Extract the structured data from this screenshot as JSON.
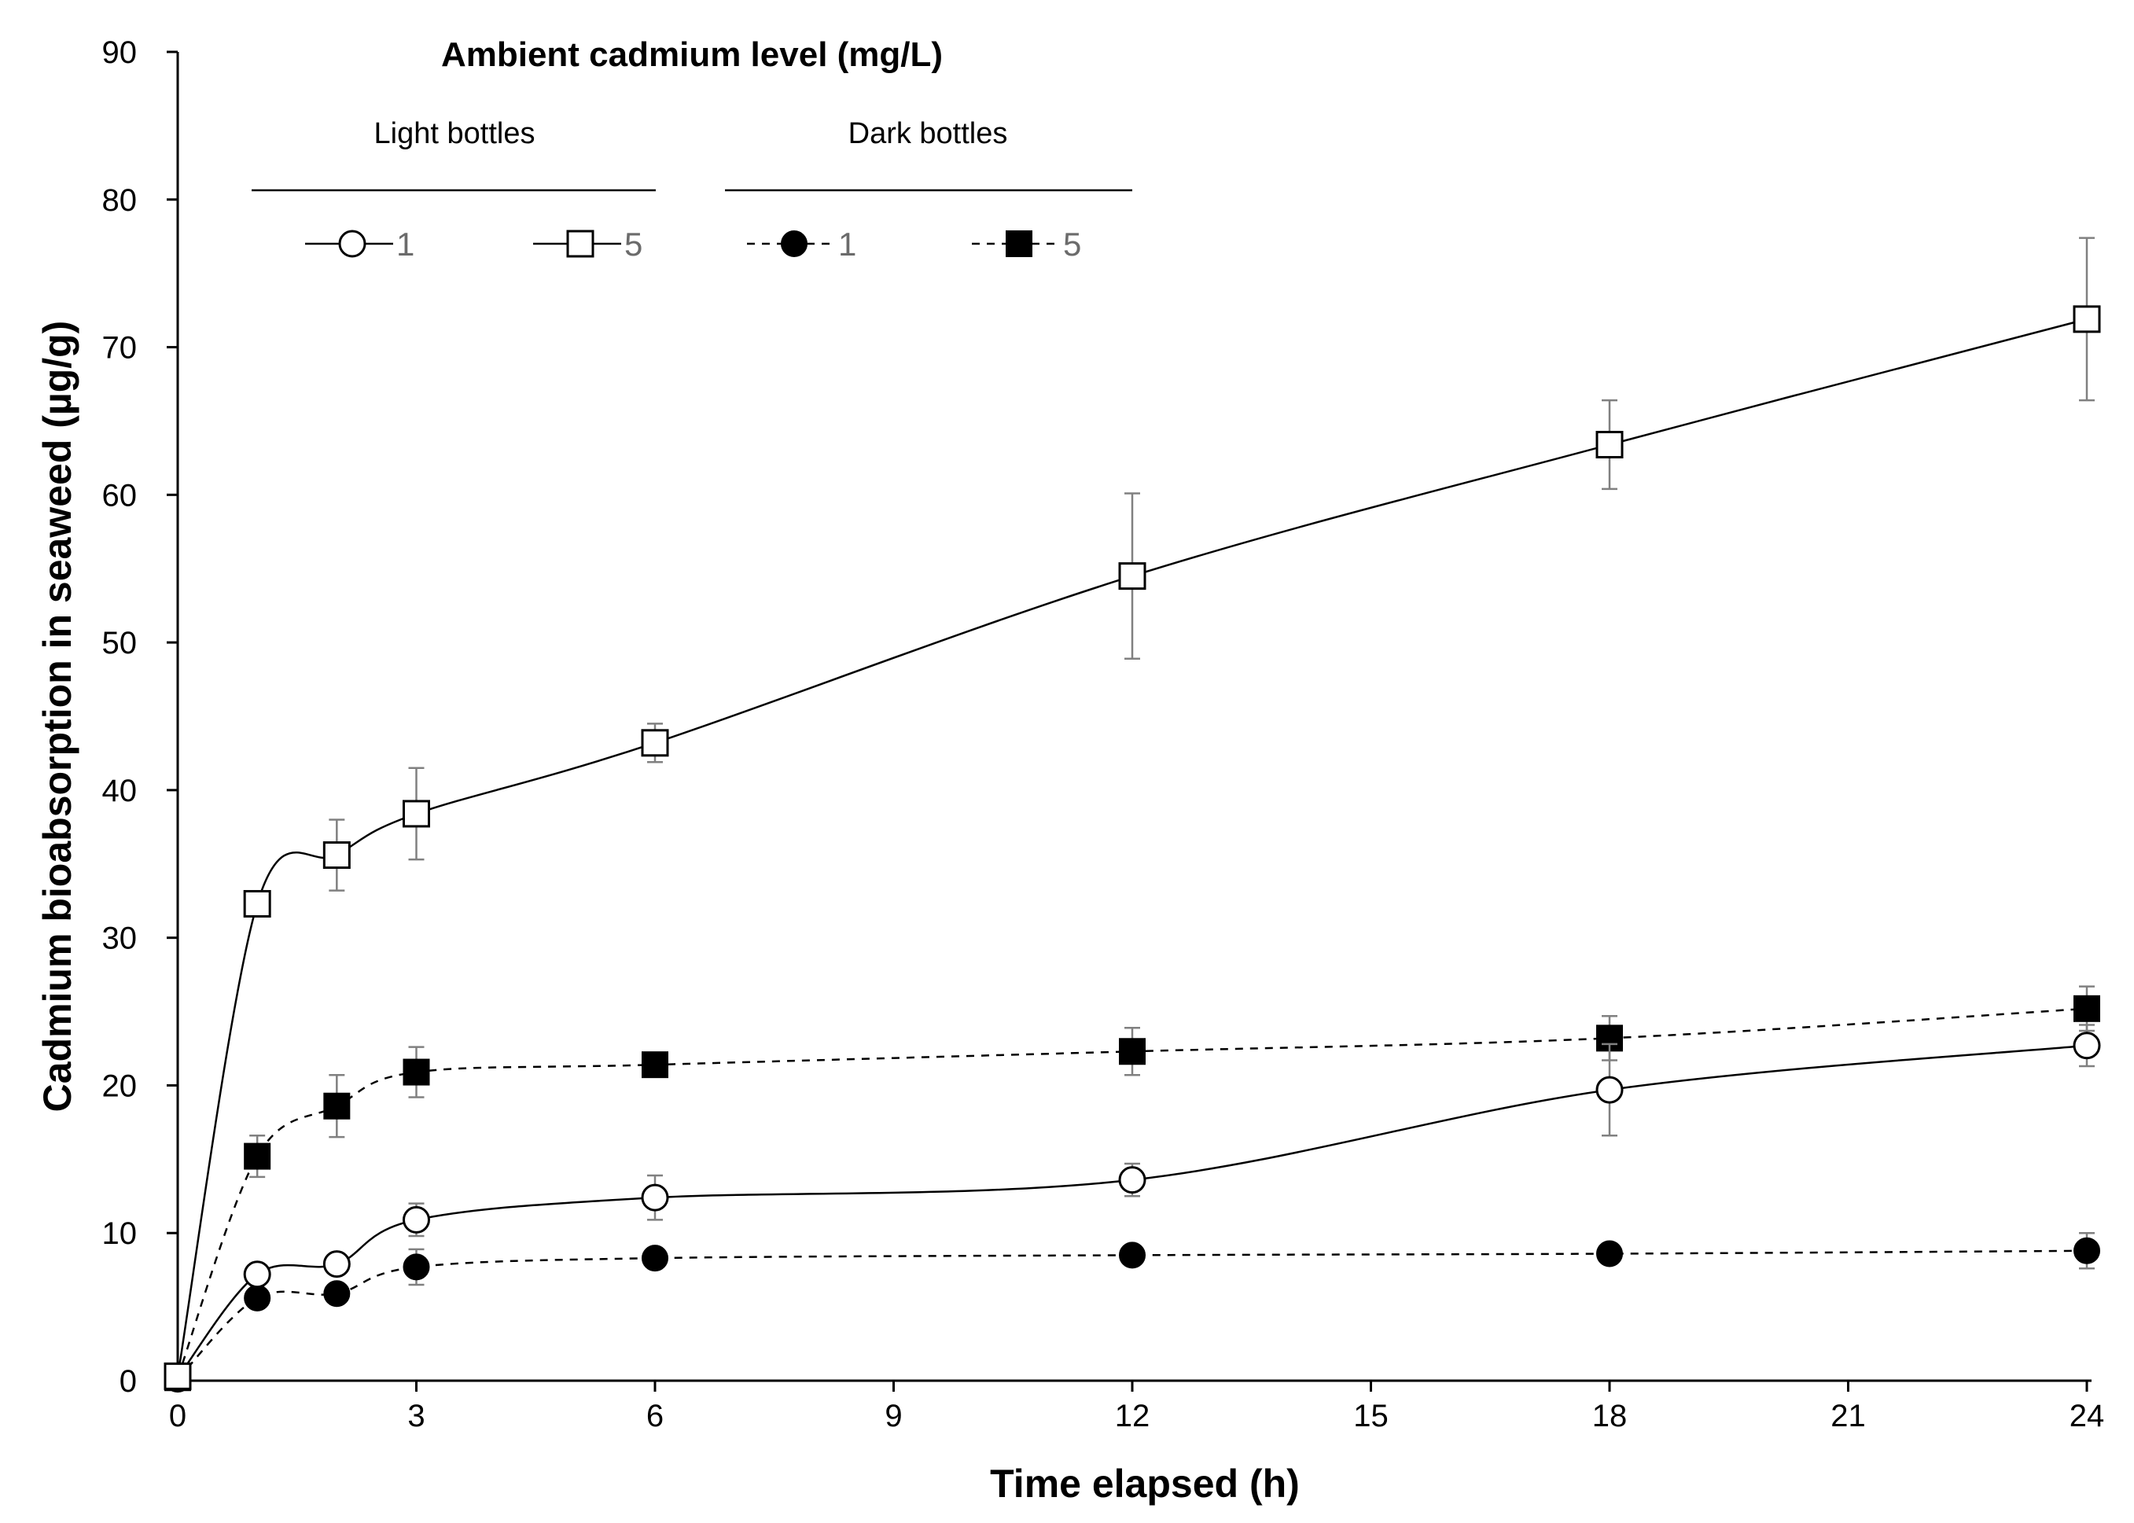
{
  "chart_data": {
    "type": "line",
    "title": "",
    "xlabel": "Time elapsed (h)",
    "ylabel": "Cadmium bioabsorption in seaweed (µg/g)",
    "xlim": [
      0,
      24
    ],
    "ylim": [
      0,
      90
    ],
    "xticks": [
      0,
      3,
      6,
      9,
      12,
      15,
      18,
      21,
      24
    ],
    "yticks": [
      0,
      10,
      20,
      30,
      40,
      50,
      60,
      70,
      80,
      90
    ],
    "x": [
      0,
      1,
      2,
      3,
      6,
      12,
      18,
      24
    ],
    "legend": {
      "title": "Ambient cadmium level (mg/L)",
      "groups": [
        "Light bottles",
        "Dark bottles"
      ],
      "placement": "top-left"
    },
    "series": [
      {
        "name": "1",
        "group": "Light bottles",
        "marker": "open-circle",
        "line": "solid",
        "values": [
          0.2,
          7.2,
          7.9,
          10.9,
          12.4,
          13.6,
          19.7,
          22.7
        ],
        "errors": [
          0,
          0.6,
          0.7,
          1.1,
          1.5,
          1.1,
          3.1,
          1.4
        ]
      },
      {
        "name": "5",
        "group": "Light bottles",
        "marker": "open-square",
        "line": "solid",
        "values": [
          0.3,
          32.3,
          35.6,
          38.4,
          43.2,
          54.5,
          63.4,
          71.9
        ],
        "errors": [
          0,
          0,
          2.4,
          3.1,
          1.3,
          5.6,
          3.0,
          5.5
        ]
      },
      {
        "name": "1",
        "group": "Dark bottles",
        "marker": "filled-circle",
        "line": "dashed",
        "values": [
          0.1,
          5.6,
          5.9,
          7.7,
          8.3,
          8.5,
          8.6,
          8.8
        ],
        "errors": [
          0,
          0.5,
          0.6,
          1.2,
          0.6,
          0.5,
          0.4,
          1.2
        ]
      },
      {
        "name": "5",
        "group": "Dark bottles",
        "marker": "filled-square",
        "line": "dashed",
        "values": [
          0.2,
          15.2,
          18.6,
          20.9,
          21.4,
          22.3,
          23.2,
          25.2
        ],
        "errors": [
          0,
          1.4,
          2.1,
          1.7,
          0.6,
          1.6,
          1.5,
          1.5
        ]
      }
    ]
  }
}
